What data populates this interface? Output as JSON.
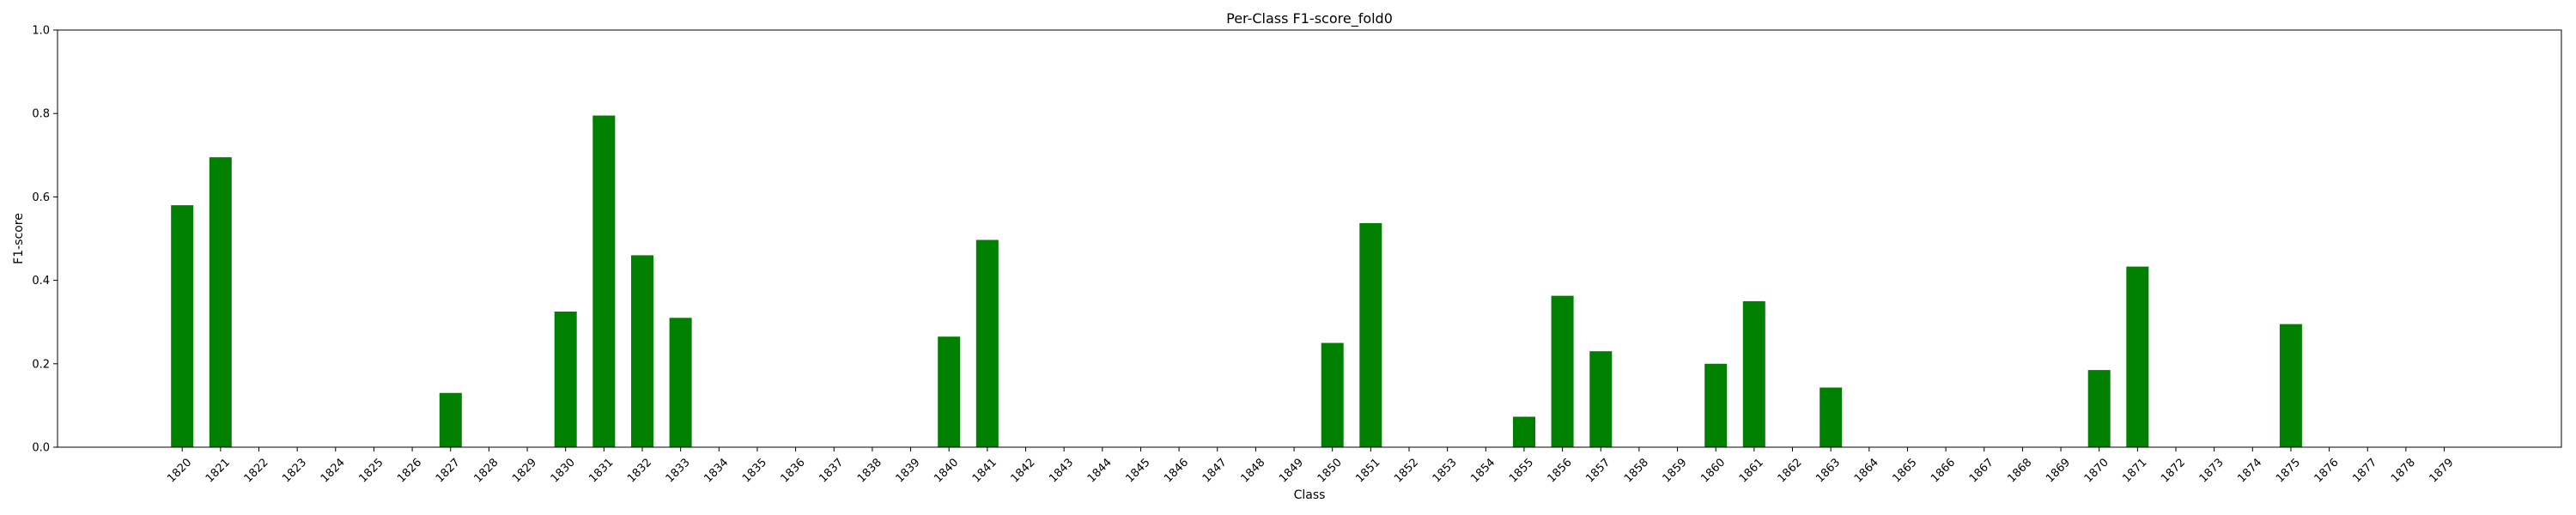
{
  "chart_data": {
    "type": "bar",
    "title": "Per-Class F1-score_fold0",
    "xlabel": "Class",
    "ylabel": "F1-score",
    "ylim": [
      0,
      1.0
    ],
    "yticks": [
      "0.0",
      "0.2",
      "0.4",
      "0.6",
      "0.8",
      "1.0"
    ],
    "grid": false,
    "bar_color": "#008000",
    "categories": [
      "1820",
      "1821",
      "1822",
      "1823",
      "1824",
      "1825",
      "1826",
      "1827",
      "1828",
      "1829",
      "1830",
      "1831",
      "1832",
      "1833",
      "1834",
      "1835",
      "1836",
      "1837",
      "1838",
      "1839",
      "1840",
      "1841",
      "1842",
      "1843",
      "1844",
      "1845",
      "1846",
      "1847",
      "1848",
      "1849",
      "1850",
      "1851",
      "1852",
      "1853",
      "1854",
      "1855",
      "1856",
      "1857",
      "1858",
      "1859",
      "1860",
      "1861",
      "1862",
      "1863",
      "1864",
      "1865",
      "1866",
      "1867",
      "1868",
      "1869",
      "1870",
      "1871",
      "1872",
      "1873",
      "1874",
      "1875",
      "1876",
      "1877",
      "1878",
      "1879"
    ],
    "values": [
      0.58,
      0.695,
      0,
      0,
      0,
      0,
      0,
      0.13,
      0,
      0,
      0.325,
      0.795,
      0.46,
      0.31,
      0,
      0,
      0,
      0,
      0,
      0,
      0.265,
      0.497,
      0,
      0,
      0,
      0,
      0,
      0,
      0,
      0,
      0.25,
      0.537,
      0,
      0,
      0,
      0.073,
      0.363,
      0.23,
      0,
      0,
      0.2,
      0.35,
      0,
      0.143,
      0,
      0,
      0,
      0,
      0,
      0,
      0.185,
      0.433,
      0,
      0,
      0,
      0.295,
      0,
      0,
      0,
      0
    ]
  }
}
